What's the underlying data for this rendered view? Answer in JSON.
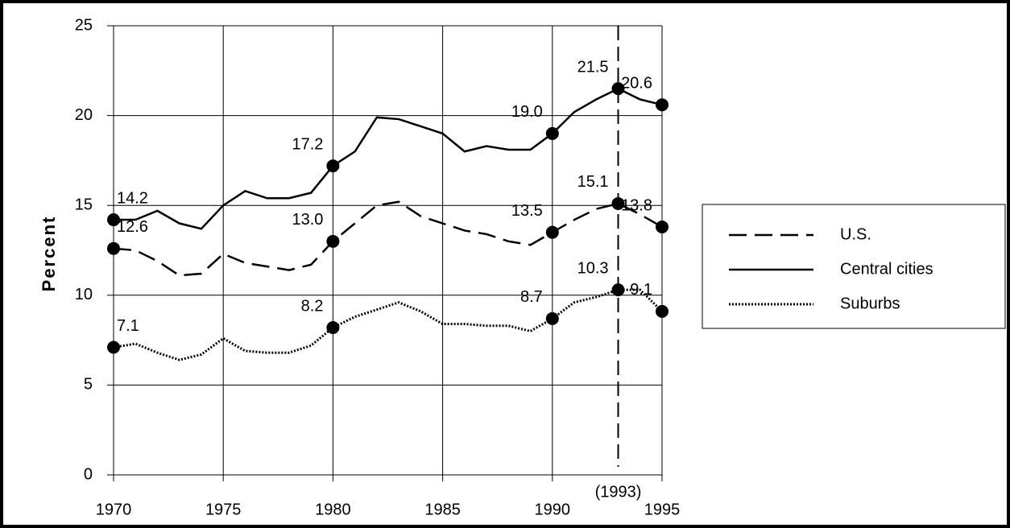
{
  "chart_data": {
    "type": "line",
    "y_label": "Percent",
    "x": [
      1970,
      1971,
      1972,
      1973,
      1974,
      1975,
      1976,
      1977,
      1978,
      1979,
      1980,
      1981,
      1982,
      1983,
      1984,
      1985,
      1986,
      1987,
      1988,
      1989,
      1990,
      1991,
      1992,
      1993,
      1994,
      1995
    ],
    "xlim": [
      1970,
      1995
    ],
    "xticks": [
      1970,
      1975,
      1980,
      1985,
      1990,
      1995
    ],
    "ylim": [
      0,
      25
    ],
    "yticks": [
      0,
      5,
      10,
      15,
      20,
      25
    ],
    "grid": true,
    "legend": "right",
    "annotations": [
      {
        "x": 1993,
        "label": "(1993)"
      }
    ],
    "series": [
      {
        "name": "U.S.",
        "color": "#000000",
        "dash": "dashed",
        "values": [
          12.6,
          12.5,
          11.9,
          11.1,
          11.2,
          12.3,
          11.8,
          11.6,
          11.4,
          11.7,
          13.0,
          14.0,
          15.0,
          15.2,
          14.4,
          14.0,
          13.6,
          13.4,
          13.0,
          12.8,
          13.5,
          14.2,
          14.8,
          15.1,
          14.5,
          13.8
        ],
        "value_labels": [
          "12.6",
          null,
          null,
          null,
          null,
          null,
          null,
          null,
          null,
          null,
          "13.0",
          null,
          null,
          null,
          null,
          null,
          null,
          null,
          null,
          null,
          "13.5",
          null,
          null,
          "15.1",
          null,
          "13.8"
        ]
      },
      {
        "name": "Central cities",
        "color": "#000000",
        "dash": "solid",
        "values": [
          14.2,
          14.2,
          14.7,
          14.0,
          13.7,
          15.0,
          15.8,
          15.4,
          15.4,
          15.7,
          17.2,
          18.0,
          19.9,
          19.8,
          19.4,
          19.0,
          18.0,
          18.3,
          18.1,
          18.1,
          19.0,
          20.2,
          20.9,
          21.5,
          20.9,
          20.6
        ],
        "value_labels": [
          "14.2",
          null,
          null,
          null,
          null,
          null,
          null,
          null,
          null,
          null,
          "17.2",
          null,
          null,
          null,
          null,
          null,
          null,
          null,
          null,
          null,
          "19.0",
          null,
          null,
          "21.5",
          null,
          "20.6"
        ]
      },
      {
        "name": "Suburbs",
        "color": "#000000",
        "dash": "dotted",
        "values": [
          7.1,
          7.3,
          6.8,
          6.4,
          6.7,
          7.6,
          6.9,
          6.8,
          6.8,
          7.2,
          8.2,
          8.8,
          9.2,
          9.6,
          9.1,
          8.4,
          8.4,
          8.3,
          8.3,
          8.0,
          8.7,
          9.6,
          9.9,
          10.3,
          10.3,
          9.1
        ],
        "value_labels": [
          "7.1",
          null,
          null,
          null,
          null,
          null,
          null,
          null,
          null,
          null,
          "8.2",
          null,
          null,
          null,
          null,
          null,
          null,
          null,
          null,
          null,
          "8.7",
          null,
          null,
          "10.3",
          null,
          "9.1"
        ]
      }
    ]
  }
}
